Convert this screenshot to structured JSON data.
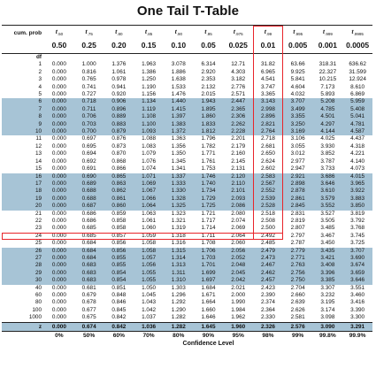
{
  "title": "One Tail T-Table",
  "header": {
    "cum_prob_label": "cum. prob",
    "df_label": "df",
    "t_subscripts": [
      ".50",
      ".75",
      ".80",
      ".85",
      ".90",
      ".95",
      ".975",
      ".99",
      ".995",
      ".999",
      ".9995"
    ],
    "t_symbol": "t",
    "alpha_values": [
      "0.50",
      "0.25",
      "0.20",
      "0.15",
      "0.10",
      "0.05",
      "0.025",
      "0.01",
      "0.005",
      "0.001",
      "0.0005"
    ]
  },
  "rows": [
    {
      "df": "1",
      "v": [
        "0.000",
        "1.000",
        "1.376",
        "1.963",
        "3.078",
        "6.314",
        "12.71",
        "31.82",
        "63.66",
        "318.31",
        "636.62"
      ]
    },
    {
      "df": "2",
      "v": [
        "0.000",
        "0.816",
        "1.061",
        "1.386",
        "1.886",
        "2.920",
        "4.303",
        "6.965",
        "9.925",
        "22.327",
        "31.599"
      ]
    },
    {
      "df": "3",
      "v": [
        "0.000",
        "0.765",
        "0.978",
        "1.250",
        "1.638",
        "2.353",
        "3.182",
        "4.541",
        "5.841",
        "10.215",
        "12.924"
      ]
    },
    {
      "df": "4",
      "v": [
        "0.000",
        "0.741",
        "0.941",
        "1.190",
        "1.533",
        "2.132",
        "2.776",
        "3.747",
        "4.604",
        "7.173",
        "8.610"
      ]
    },
    {
      "df": "5",
      "v": [
        "0.000",
        "0.727",
        "0.920",
        "1.156",
        "1.476",
        "2.015",
        "2.571",
        "3.365",
        "4.032",
        "5.893",
        "6.869"
      ]
    },
    {
      "df": "6",
      "v": [
        "0.000",
        "0.718",
        "0.906",
        "1.134",
        "1.440",
        "1.943",
        "2.447",
        "3.143",
        "3.707",
        "5.208",
        "5.959"
      ]
    },
    {
      "df": "7",
      "v": [
        "0.000",
        "0.711",
        "0.896",
        "1.119",
        "1.415",
        "1.895",
        "2.365",
        "2.998",
        "3.499",
        "4.785",
        "5.408"
      ]
    },
    {
      "df": "8",
      "v": [
        "0.000",
        "0.706",
        "0.889",
        "1.108",
        "1.397",
        "1.860",
        "2.306",
        "2.896",
        "3.355",
        "4.501",
        "5.041"
      ]
    },
    {
      "df": "9",
      "v": [
        "0.000",
        "0.703",
        "0.883",
        "1.100",
        "1.383",
        "1.833",
        "2.262",
        "2.821",
        "3.250",
        "4.297",
        "4.781"
      ]
    },
    {
      "df": "10",
      "v": [
        "0.000",
        "0.700",
        "0.879",
        "1.093",
        "1.372",
        "1.812",
        "2.228",
        "2.764",
        "3.169",
        "4.144",
        "4.587"
      ]
    },
    {
      "df": "11",
      "v": [
        "0.000",
        "0.697",
        "0.876",
        "1.088",
        "1.363",
        "1.796",
        "2.201",
        "2.718",
        "3.106",
        "4.025",
        "4.437"
      ]
    },
    {
      "df": "12",
      "v": [
        "0.000",
        "0.695",
        "0.873",
        "1.083",
        "1.356",
        "1.782",
        "2.179",
        "2.681",
        "3.055",
        "3.930",
        "4.318"
      ]
    },
    {
      "df": "13",
      "v": [
        "0.000",
        "0.694",
        "0.870",
        "1.079",
        "1.350",
        "1.771",
        "2.160",
        "2.650",
        "3.012",
        "3.852",
        "4.221"
      ]
    },
    {
      "df": "14",
      "v": [
        "0.000",
        "0.692",
        "0.868",
        "1.076",
        "1.345",
        "1.761",
        "2.145",
        "2.624",
        "2.977",
        "3.787",
        "4.140"
      ]
    },
    {
      "df": "15",
      "v": [
        "0.000",
        "0.691",
        "0.866",
        "1.074",
        "1.341",
        "1.753",
        "2.131",
        "2.602",
        "2.947",
        "3.733",
        "4.073"
      ]
    },
    {
      "df": "16",
      "v": [
        "0.000",
        "0.690",
        "0.865",
        "1.071",
        "1.337",
        "1.746",
        "2.120",
        "2.583",
        "2.921",
        "3.686",
        "4.015"
      ]
    },
    {
      "df": "17",
      "v": [
        "0.000",
        "0.689",
        "0.863",
        "1.069",
        "1.333",
        "1.740",
        "2.110",
        "2.567",
        "2.898",
        "3.646",
        "3.965"
      ]
    },
    {
      "df": "18",
      "v": [
        "0.000",
        "0.688",
        "0.862",
        "1.067",
        "1.330",
        "1.734",
        "2.101",
        "2.552",
        "2.878",
        "3.610",
        "3.922"
      ]
    },
    {
      "df": "19",
      "v": [
        "0.000",
        "0.688",
        "0.861",
        "1.066",
        "1.328",
        "1.729",
        "2.093",
        "2.539",
        "2.861",
        "3.579",
        "3.883"
      ]
    },
    {
      "df": "20",
      "v": [
        "0.000",
        "0.687",
        "0.860",
        "1.064",
        "1.325",
        "1.725",
        "2.086",
        "2.528",
        "2.845",
        "3.552",
        "3.850"
      ]
    },
    {
      "df": "21",
      "v": [
        "0.000",
        "0.686",
        "0.859",
        "1.063",
        "1.323",
        "1.721",
        "2.080",
        "2.518",
        "2.831",
        "3.527",
        "3.819"
      ]
    },
    {
      "df": "22",
      "v": [
        "0.000",
        "0.686",
        "0.858",
        "1.061",
        "1.321",
        "1.717",
        "2.074",
        "2.508",
        "2.819",
        "3.505",
        "3.792"
      ]
    },
    {
      "df": "23",
      "v": [
        "0.000",
        "0.685",
        "0.858",
        "1.060",
        "1.319",
        "1.714",
        "2.069",
        "2.500",
        "2.807",
        "3.485",
        "3.768"
      ]
    },
    {
      "df": "24",
      "v": [
        "0.000",
        "0.685",
        "0.857",
        "1.059",
        "1.318",
        "1.711",
        "2.064",
        "2.492",
        "2.797",
        "3.467",
        "3.745"
      ]
    },
    {
      "df": "25",
      "v": [
        "0.000",
        "0.684",
        "0.856",
        "1.058",
        "1.316",
        "1.708",
        "2.060",
        "2.485",
        "2.787",
        "3.450",
        "3.725"
      ]
    },
    {
      "df": "26",
      "v": [
        "0.000",
        "0.684",
        "0.856",
        "1.058",
        "1.315",
        "1.706",
        "2.056",
        "2.479",
        "2.779",
        "3.435",
        "3.707"
      ]
    },
    {
      "df": "27",
      "v": [
        "0.000",
        "0.684",
        "0.855",
        "1.057",
        "1.314",
        "1.703",
        "2.052",
        "2.473",
        "2.771",
        "3.421",
        "3.690"
      ]
    },
    {
      "df": "28",
      "v": [
        "0.000",
        "0.683",
        "0.855",
        "1.056",
        "1.313",
        "1.701",
        "2.048",
        "2.467",
        "2.763",
        "3.408",
        "3.674"
      ]
    },
    {
      "df": "29",
      "v": [
        "0.000",
        "0.683",
        "0.854",
        "1.055",
        "1.311",
        "1.699",
        "2.045",
        "2.462",
        "2.756",
        "3.396",
        "3.659"
      ]
    },
    {
      "df": "30",
      "v": [
        "0.000",
        "0.683",
        "0.854",
        "1.055",
        "1.310",
        "1.697",
        "2.042",
        "2.457",
        "2.750",
        "3.385",
        "3.646"
      ]
    },
    {
      "df": "40",
      "v": [
        "0.000",
        "0.681",
        "0.851",
        "1.050",
        "1.303",
        "1.684",
        "2.021",
        "2.423",
        "2.704",
        "3.307",
        "3.551"
      ]
    },
    {
      "df": "60",
      "v": [
        "0.000",
        "0.679",
        "0.848",
        "1.045",
        "1.296",
        "1.671",
        "2.000",
        "2.390",
        "2.660",
        "3.232",
        "3.460"
      ]
    },
    {
      "df": "80",
      "v": [
        "0.000",
        "0.678",
        "0.846",
        "1.043",
        "1.292",
        "1.664",
        "1.990",
        "2.374",
        "2.639",
        "3.195",
        "3.416"
      ]
    },
    {
      "df": "100",
      "v": [
        "0.000",
        "0.677",
        "0.845",
        "1.042",
        "1.290",
        "1.660",
        "1.984",
        "2.364",
        "2.626",
        "3.174",
        "3.390"
      ]
    },
    {
      "df": "1000",
      "v": [
        "0.000",
        "0.675",
        "0.842",
        "1.037",
        "1.282",
        "1.646",
        "1.962",
        "2.330",
        "2.581",
        "3.098",
        "3.300"
      ]
    }
  ],
  "z_row": {
    "label": "z",
    "v": [
      "0.000",
      "0.674",
      "0.842",
      "1.036",
      "1.282",
      "1.645",
      "1.960",
      "2.326",
      "2.576",
      "3.090",
      "3.291"
    ]
  },
  "confidence_percents": [
    "0%",
    "50%",
    "60%",
    "70%",
    "80%",
    "90%",
    "95%",
    "98%",
    "99%",
    "99.8%",
    "99.9%"
  ],
  "confidence_label": "Confidence Level",
  "highlight": {
    "column": "0.01",
    "row_df": "24",
    "color": "#e8242a"
  },
  "colors": {
    "shade": "#a7c4d6",
    "highlight": "#e8242a"
  }
}
